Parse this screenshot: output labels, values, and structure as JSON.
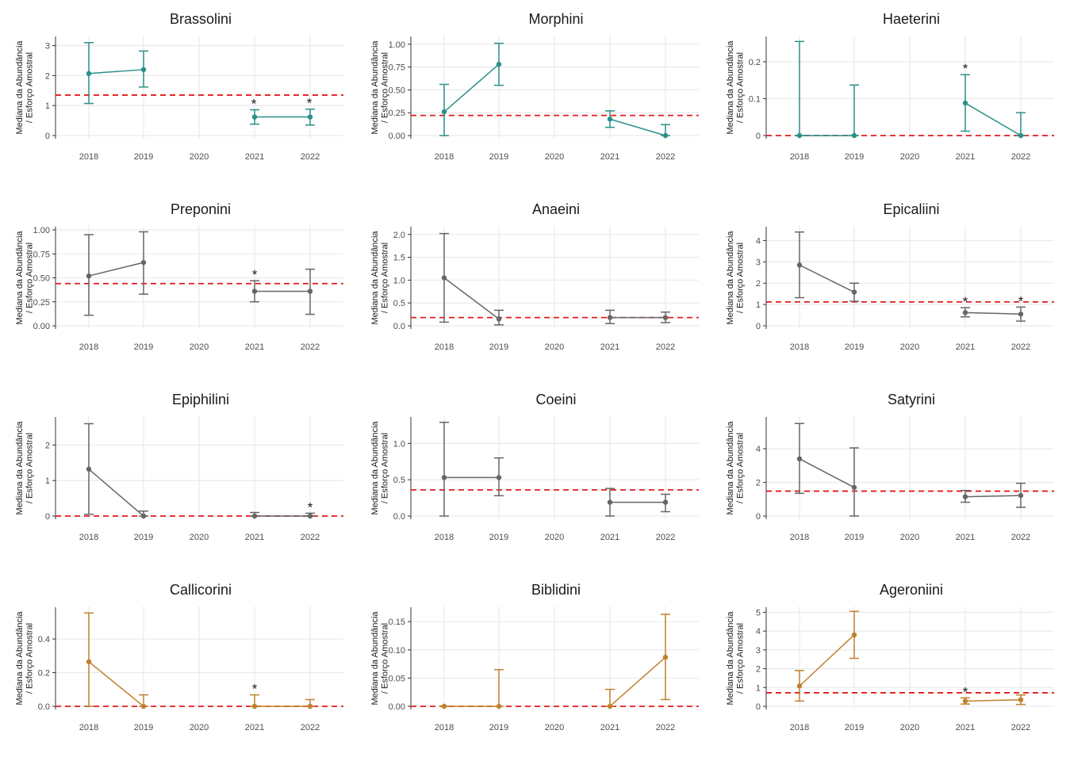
{
  "ref_color": "#e31a1c",
  "ylabel_line1": "Mediana da Abundância",
  "ylabel_line2": "/ Esforço Amostral",
  "chart_data": [
    {
      "type": "line",
      "title": "Brassolini",
      "color": "#2a9089",
      "categories": [
        "2018",
        "2019",
        "2020",
        "2021",
        "2022"
      ],
      "ylim": [
        0,
        3.2
      ],
      "yticks": [
        0,
        1,
        2,
        3
      ],
      "yticklabels": [
        "0",
        "1",
        "2",
        "3"
      ],
      "ref": 1.35,
      "values": [
        2.07,
        2.2,
        null,
        0.62,
        0.62
      ],
      "lower": [
        1.07,
        1.62,
        null,
        0.38,
        0.35
      ],
      "upper": [
        3.1,
        2.82,
        null,
        0.86,
        0.88
      ],
      "stars": [
        "2021",
        "2022"
      ]
    },
    {
      "type": "line",
      "title": "Morphini",
      "color": "#2a9089",
      "categories": [
        "2018",
        "2019",
        "2020",
        "2021",
        "2022"
      ],
      "ylim": [
        0,
        1.05
      ],
      "yticks": [
        0,
        0.25,
        0.5,
        0.75,
        1
      ],
      "yticklabels": [
        "0.00",
        "0.25",
        "0.50",
        "0.75",
        "1.00"
      ],
      "ref": 0.22,
      "values": [
        0.26,
        0.78,
        null,
        0.18,
        0
      ],
      "lower": [
        0,
        0.55,
        null,
        0.09,
        0
      ],
      "upper": [
        0.56,
        1.01,
        null,
        0.27,
        0.12
      ],
      "stars": []
    },
    {
      "type": "line",
      "title": "Haeterini",
      "color": "#2a9089",
      "categories": [
        "2018",
        "2019",
        "2020",
        "2021",
        "2022"
      ],
      "ylim": [
        0,
        0.26
      ],
      "yticks": [
        0,
        0.1,
        0.2
      ],
      "yticklabels": [
        "0",
        "0.1",
        "0.2"
      ],
      "ref": 0,
      "values": [
        0,
        0,
        null,
        0.088,
        0
      ],
      "lower": [
        0,
        0,
        null,
        0.012,
        0
      ],
      "upper": [
        0.255,
        0.137,
        null,
        0.165,
        0.062
      ],
      "stars": [
        "2021"
      ]
    },
    {
      "type": "line",
      "title": "Preponini",
      "color": "#666666",
      "categories": [
        "2018",
        "2019",
        "2020",
        "2021",
        "2022"
      ],
      "ylim": [
        0,
        1
      ],
      "yticks": [
        0,
        0.25,
        0.5,
        0.75,
        1
      ],
      "yticklabels": [
        "0.00",
        "0.25",
        "0.50",
        "0.75",
        "1.00"
      ],
      "ref": 0.44,
      "values": [
        0.52,
        0.66,
        null,
        0.36,
        0.36
      ],
      "lower": [
        0.11,
        0.33,
        null,
        0.25,
        0.12
      ],
      "upper": [
        0.95,
        0.98,
        null,
        0.47,
        0.59
      ],
      "stars": [
        "2021"
      ]
    },
    {
      "type": "line",
      "title": "Anaeini",
      "color": "#666666",
      "categories": [
        "2018",
        "2019",
        "2020",
        "2021",
        "2022"
      ],
      "ylim": [
        0,
        2.1
      ],
      "yticks": [
        0,
        0.5,
        1,
        1.5,
        2
      ],
      "yticklabels": [
        "0.0",
        "0.5",
        "1.0",
        "1.5",
        "2.0"
      ],
      "ref": 0.18,
      "values": [
        1.05,
        0.15,
        null,
        0.18,
        0.18
      ],
      "lower": [
        0.08,
        0.02,
        null,
        0.05,
        0.07
      ],
      "upper": [
        2.02,
        0.34,
        null,
        0.34,
        0.3
      ],
      "stars": []
    },
    {
      "type": "line",
      "title": "Epicaliini",
      "color": "#666666",
      "categories": [
        "2018",
        "2019",
        "2020",
        "2021",
        "2022"
      ],
      "ylim": [
        0,
        4.5
      ],
      "yticks": [
        0,
        1,
        2,
        3,
        4
      ],
      "yticklabels": [
        "0",
        "1",
        "2",
        "3",
        "4"
      ],
      "ref": 1.12,
      "values": [
        2.85,
        1.58,
        null,
        0.62,
        0.55
      ],
      "lower": [
        1.32,
        1.15,
        null,
        0.42,
        0.22
      ],
      "upper": [
        4.4,
        2.0,
        null,
        0.85,
        0.88
      ],
      "stars": [
        "2021",
        "2022"
      ]
    },
    {
      "type": "line",
      "title": "Epiphilini",
      "color": "#666666",
      "categories": [
        "2018",
        "2019",
        "2020",
        "2021",
        "2022"
      ],
      "ylim": [
        0,
        2.7
      ],
      "yticks": [
        0,
        1,
        2
      ],
      "yticklabels": [
        "0",
        "1",
        "2"
      ],
      "ref": 0,
      "values": [
        1.32,
        0,
        null,
        0,
        0
      ],
      "lower": [
        0.05,
        0,
        null,
        0,
        0
      ],
      "upper": [
        2.6,
        0.14,
        null,
        0.1,
        0.08
      ],
      "stars": [
        "2022"
      ]
    },
    {
      "type": "line",
      "title": "Coeini",
      "color": "#666666",
      "categories": [
        "2018",
        "2019",
        "2020",
        "2021",
        "2022"
      ],
      "ylim": [
        0,
        1.32
      ],
      "yticks": [
        0,
        0.5,
        1
      ],
      "yticklabels": [
        "0.0",
        "0.5",
        "1.0"
      ],
      "ref": 0.36,
      "values": [
        0.53,
        0.53,
        null,
        0.19,
        0.19
      ],
      "lower": [
        0,
        0.28,
        null,
        0,
        0.06
      ],
      "upper": [
        1.29,
        0.8,
        null,
        0.38,
        0.3
      ],
      "stars": []
    },
    {
      "type": "line",
      "title": "Satyrini",
      "color": "#666666",
      "categories": [
        "2018",
        "2019",
        "2020",
        "2021",
        "2022"
      ],
      "ylim": [
        0,
        5.7
      ],
      "yticks": [
        0,
        2,
        4
      ],
      "yticklabels": [
        "0",
        "2",
        "4"
      ],
      "ref": 1.48,
      "values": [
        3.4,
        1.7,
        null,
        1.15,
        1.22
      ],
      "lower": [
        1.35,
        0,
        null,
        0.82,
        0.52
      ],
      "upper": [
        5.5,
        4.05,
        null,
        1.52,
        1.95
      ],
      "stars": []
    },
    {
      "type": "line",
      "title": "Callicorini",
      "color": "#c0812f",
      "categories": [
        "2018",
        "2019",
        "2020",
        "2021",
        "2022"
      ],
      "ylim": [
        0,
        0.57
      ],
      "yticks": [
        0,
        0.2,
        0.4
      ],
      "yticklabels": [
        "0.0",
        "0.2",
        "0.4"
      ],
      "ref": 0,
      "values": [
        0.265,
        0,
        null,
        0,
        0
      ],
      "lower": [
        0,
        0,
        null,
        0,
        0
      ],
      "upper": [
        0.555,
        0.068,
        null,
        0.068,
        0.04
      ],
      "stars": [
        "2021"
      ]
    },
    {
      "type": "line",
      "title": "Biblidini",
      "color": "#c0812f",
      "categories": [
        "2018",
        "2019",
        "2020",
        "2021",
        "2022"
      ],
      "ylim": [
        0,
        0.17
      ],
      "yticks": [
        0,
        0.05,
        0.1,
        0.15
      ],
      "yticklabels": [
        "0.00",
        "0.05",
        "0.10",
        "0.15"
      ],
      "ref": 0,
      "values": [
        0,
        0,
        null,
        0,
        0.087
      ],
      "lower": [
        0,
        0,
        null,
        0,
        0.012
      ],
      "upper": [
        0,
        0.065,
        null,
        0.03,
        0.163
      ],
      "stars": []
    },
    {
      "type": "line",
      "title": "Ageroniini",
      "color": "#c0812f",
      "categories": [
        "2018",
        "2019",
        "2020",
        "2021",
        "2022"
      ],
      "ylim": [
        0,
        5.1
      ],
      "yticks": [
        0,
        1,
        2,
        3,
        4,
        5
      ],
      "yticklabels": [
        "0",
        "1",
        "2",
        "3",
        "4",
        "5"
      ],
      "ref": 0.72,
      "values": [
        1.08,
        3.8,
        null,
        0.28,
        0.35
      ],
      "lower": [
        0.28,
        2.55,
        null,
        0.12,
        0.1
      ],
      "upper": [
        1.9,
        5.05,
        null,
        0.45,
        0.6
      ],
      "stars": [
        "2021"
      ]
    }
  ]
}
